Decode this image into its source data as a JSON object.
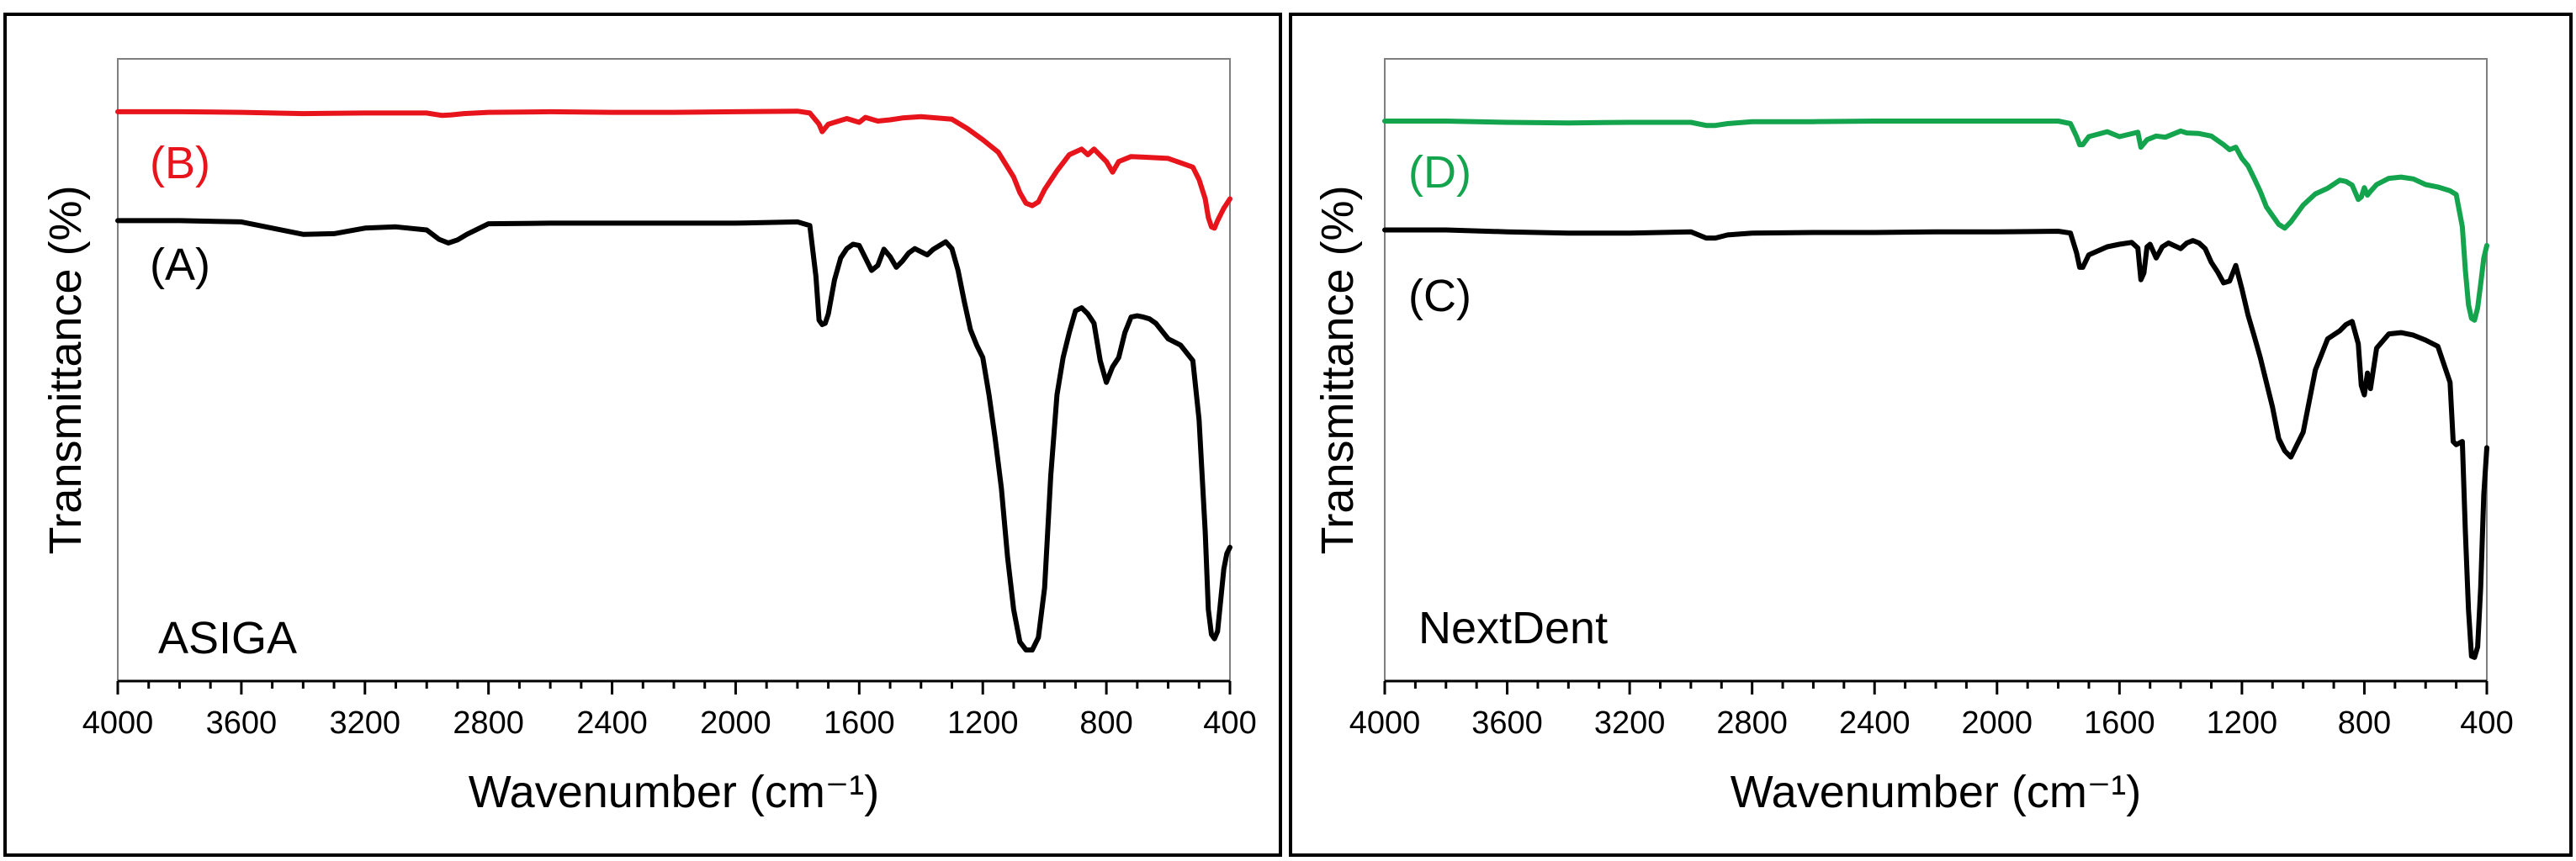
{
  "chart_data": [
    {
      "type": "line",
      "panel": "left",
      "title": "",
      "xlabel": "Wavenumber (cm⁻¹)",
      "ylabel": "Transmittance (%)",
      "xlim": [
        4000,
        400
      ],
      "ylim": [
        0,
        100
      ],
      "x_ticks": [
        "4000",
        "3600",
        "3200",
        "2800",
        "2400",
        "2000",
        "1600",
        "1200",
        "800",
        "400"
      ],
      "annotation": "ASIGA",
      "series": [
        {
          "name": "(B)",
          "color": "#e8141b",
          "x": [
            4000,
            3800,
            3600,
            3400,
            3200,
            3000,
            2950,
            2920,
            2880,
            2800,
            2600,
            2400,
            2200,
            2000,
            1800,
            1760,
            1730,
            1720,
            1700,
            1640,
            1600,
            1580,
            1540,
            1500,
            1460,
            1400,
            1300,
            1250,
            1200,
            1150,
            1100,
            1080,
            1060,
            1040,
            1020,
            1000,
            960,
            920,
            880,
            860,
            840,
            800,
            780,
            760,
            720,
            680,
            600,
            560,
            520,
            500,
            480,
            470,
            460,
            450,
            440,
            420,
            400
          ],
          "y": [
            91.5,
            91.5,
            91.4,
            91.2,
            91.3,
            91.3,
            90.9,
            91.0,
            91.2,
            91.4,
            91.5,
            91.4,
            91.4,
            91.5,
            91.6,
            91.3,
            89.5,
            88.3,
            89.5,
            90.4,
            89.8,
            90.6,
            90.0,
            90.2,
            90.5,
            90.7,
            90.3,
            88.8,
            87.0,
            85.0,
            81.0,
            78.5,
            76.8,
            76.4,
            77.0,
            79.0,
            82.0,
            84.6,
            85.5,
            84.6,
            85.5,
            83.5,
            81.8,
            83.5,
            84.3,
            84.2,
            84.0,
            83.3,
            82.6,
            80.6,
            77.5,
            74.5,
            73.0,
            72.8,
            74.0,
            76.0,
            77.5
          ]
        },
        {
          "name": "(A)",
          "color": "#000000",
          "x": [
            4000,
            3800,
            3600,
            3400,
            3300,
            3200,
            3100,
            3000,
            2960,
            2930,
            2900,
            2870,
            2800,
            2600,
            2400,
            2200,
            2000,
            1800,
            1760,
            1740,
            1730,
            1720,
            1710,
            1700,
            1680,
            1660,
            1640,
            1620,
            1600,
            1580,
            1560,
            1540,
            1520,
            1500,
            1480,
            1460,
            1440,
            1420,
            1400,
            1380,
            1360,
            1340,
            1320,
            1300,
            1280,
            1260,
            1240,
            1220,
            1200,
            1180,
            1160,
            1140,
            1120,
            1100,
            1080,
            1060,
            1040,
            1020,
            1000,
            980,
            960,
            940,
            920,
            900,
            880,
            860,
            840,
            820,
            800,
            780,
            760,
            740,
            720,
            700,
            680,
            660,
            640,
            600,
            560,
            520,
            500,
            480,
            470,
            460,
            450,
            440,
            430,
            420,
            410,
            400
          ],
          "y": [
            74.0,
            74.0,
            73.8,
            71.8,
            71.9,
            72.8,
            73.0,
            72.5,
            71.0,
            70.4,
            70.9,
            71.8,
            73.5,
            73.6,
            73.6,
            73.6,
            73.6,
            73.8,
            73.2,
            65.0,
            58.0,
            57.3,
            57.5,
            59.0,
            64.5,
            68.0,
            69.5,
            70.2,
            70.0,
            68.0,
            66.0,
            66.8,
            69.4,
            68.2,
            66.5,
            67.5,
            68.8,
            69.5,
            69.0,
            68.5,
            69.4,
            70.0,
            70.6,
            69.5,
            66.0,
            61.0,
            56.5,
            54.0,
            52.0,
            46.0,
            39.0,
            31.0,
            20.0,
            11.5,
            6.3,
            5.0,
            5.0,
            7.0,
            15.0,
            33.0,
            46.0,
            52.0,
            56.0,
            59.5,
            60.0,
            59.0,
            57.5,
            51.5,
            48.0,
            50.5,
            52.0,
            56.0,
            58.5,
            58.7,
            58.5,
            58.2,
            57.5,
            55.0,
            54.0,
            51.5,
            42.0,
            24.0,
            11.5,
            7.5,
            6.8,
            8.0,
            13.0,
            18.0,
            20.5,
            21.5
          ]
        }
      ]
    },
    {
      "type": "line",
      "panel": "right",
      "title": "",
      "xlabel": "Wavenumber (cm⁻¹)",
      "ylabel": "Transmittance (%)",
      "xlim": [
        4000,
        400
      ],
      "ylim": [
        0,
        100
      ],
      "x_ticks": [
        "4000",
        "3600",
        "3200",
        "2800",
        "2400",
        "2000",
        "1600",
        "1200",
        "800",
        "400"
      ],
      "annotation": "NextDent",
      "series": [
        {
          "name": "(D)",
          "color": "#14a44d",
          "x": [
            4000,
            3800,
            3600,
            3400,
            3200,
            3000,
            2950,
            2920,
            2880,
            2800,
            2600,
            2400,
            2200,
            2000,
            1800,
            1760,
            1740,
            1730,
            1720,
            1700,
            1640,
            1600,
            1540,
            1530,
            1510,
            1480,
            1450,
            1400,
            1380,
            1340,
            1300,
            1260,
            1240,
            1220,
            1200,
            1180,
            1160,
            1140,
            1120,
            1100,
            1080,
            1060,
            1040,
            1000,
            960,
            920,
            880,
            860,
            840,
            820,
            810,
            800,
            790,
            780,
            760,
            720,
            680,
            640,
            600,
            560,
            520,
            500,
            480,
            470,
            460,
            450,
            440,
            430,
            420,
            410,
            400
          ],
          "y": [
            90.0,
            90.0,
            89.8,
            89.7,
            89.8,
            89.8,
            89.3,
            89.3,
            89.6,
            89.9,
            89.9,
            90.0,
            90.0,
            90.0,
            90.0,
            89.6,
            87.5,
            86.2,
            86.2,
            87.5,
            88.3,
            87.5,
            88.2,
            85.8,
            87.0,
            87.6,
            87.4,
            88.4,
            88.1,
            88.0,
            87.6,
            86.2,
            85.4,
            85.8,
            84.0,
            82.8,
            80.8,
            78.7,
            76.2,
            74.8,
            73.4,
            72.8,
            73.8,
            76.5,
            78.3,
            79.2,
            80.5,
            80.3,
            79.7,
            77.4,
            77.8,
            79.3,
            78.1,
            78.7,
            79.8,
            80.8,
            81.0,
            80.7,
            79.8,
            79.4,
            78.8,
            78.2,
            73.0,
            66.0,
            60.5,
            58.3,
            58.0,
            60.0,
            63.8,
            68.0,
            70.0
          ]
        },
        {
          "name": "(C)",
          "color": "#000000",
          "x": [
            4000,
            3800,
            3600,
            3400,
            3200,
            3000,
            2950,
            2920,
            2880,
            2800,
            2600,
            2400,
            2200,
            2000,
            1800,
            1760,
            1740,
            1730,
            1720,
            1700,
            1640,
            1600,
            1560,
            1540,
            1530,
            1520,
            1510,
            1500,
            1480,
            1460,
            1440,
            1400,
            1380,
            1360,
            1340,
            1320,
            1300,
            1280,
            1260,
            1240,
            1220,
            1200,
            1180,
            1160,
            1140,
            1120,
            1100,
            1080,
            1060,
            1040,
            1000,
            960,
            920,
            880,
            860,
            840,
            820,
            810,
            800,
            790,
            780,
            760,
            720,
            680,
            640,
            600,
            560,
            520,
            510,
            500,
            480,
            470,
            460,
            450,
            440,
            430,
            420,
            410,
            400
          ],
          "y": [
            72.5,
            72.5,
            72.2,
            72.0,
            72.0,
            72.2,
            71.2,
            71.2,
            71.7,
            72.0,
            72.1,
            72.1,
            72.2,
            72.2,
            72.3,
            72.0,
            68.8,
            66.5,
            66.5,
            68.5,
            69.8,
            70.2,
            70.5,
            69.6,
            64.5,
            65.6,
            69.8,
            70.2,
            68.0,
            69.8,
            70.4,
            69.5,
            70.4,
            70.8,
            70.4,
            69.5,
            67.3,
            65.8,
            64.0,
            64.3,
            66.8,
            63.0,
            58.8,
            55.5,
            52.0,
            48.0,
            44.0,
            39.0,
            37.0,
            36.0,
            40.0,
            50.0,
            55.0,
            56.3,
            57.3,
            57.8,
            54.2,
            47.5,
            46.0,
            49.5,
            47.0,
            53.5,
            55.8,
            56.0,
            55.6,
            54.8,
            53.8,
            48.0,
            38.5,
            38.0,
            38.5,
            24.0,
            11.5,
            4.0,
            3.8,
            5.5,
            15.0,
            30.0,
            37.5
          ]
        }
      ]
    }
  ],
  "panels": [
    {
      "xlabel": "Wavenumber (cm⁻¹)",
      "ylabel": "Transmittance (%)",
      "annotation": "ASIGA",
      "label_top": "(B)",
      "label_top_color": "#e8141b",
      "label_bottom": "(A)",
      "label_bottom_color": "#000000",
      "ticks": [
        "4000",
        "3600",
        "3200",
        "2800",
        "2400",
        "2000",
        "1600",
        "1200",
        "800",
        "400"
      ]
    },
    {
      "xlabel": "Wavenumber (cm⁻¹)",
      "ylabel": "Transmittance (%)",
      "annotation": "NextDent",
      "label_top": "(D)",
      "label_top_color": "#14a44d",
      "label_bottom": "(C)",
      "label_bottom_color": "#000000",
      "ticks": [
        "4000",
        "3600",
        "3200",
        "2800",
        "2400",
        "2000",
        "1600",
        "1200",
        "800",
        "400"
      ]
    }
  ]
}
